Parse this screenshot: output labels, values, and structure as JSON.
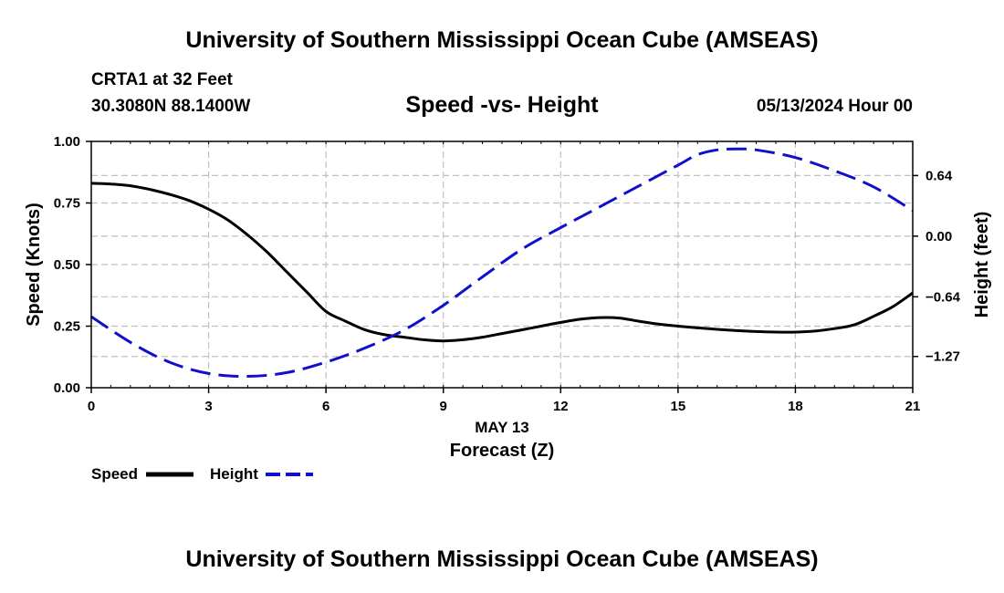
{
  "header": {
    "title": "University of Southern Mississippi Ocean Cube (AMSEAS)",
    "station": "CRTA1 at 32 Feet",
    "coords": "30.3080N  88.1400W",
    "subtitle": "Speed -vs- Height",
    "forecast": "05/13/2024 Hour 00"
  },
  "footer": {
    "title": "University of Southern Mississippi Ocean Cube (AMSEAS)"
  },
  "chart_data": {
    "type": "line",
    "title": "Speed -vs- Height",
    "xlabel": "Forecast (Z)",
    "xsublabel": "MAY 13",
    "xlim": [
      0,
      21
    ],
    "xticks": [
      0,
      3,
      6,
      9,
      12,
      15,
      18,
      21
    ],
    "ylabel": "Speed (Knots)",
    "ylim": [
      0,
      1
    ],
    "yticks": [
      0,
      0.25,
      0.5,
      0.75,
      1.0
    ],
    "ytick_labels": [
      "0.00",
      "0.25",
      "0.50",
      "0.75",
      "1.00"
    ],
    "y2label": "Height (feet)",
    "y2lim": [
      -1.6,
      1.0
    ],
    "y2ticks": [
      -1.27,
      -0.64,
      0.0,
      0.64
    ],
    "y2tick_labels": [
      "−1.27",
      "−0.64",
      "0.00",
      "0.64"
    ],
    "grid": true,
    "series": [
      {
        "name": "Speed",
        "axis": "left",
        "color": "#000000",
        "style": "solid",
        "x": [
          0,
          0.5,
          1,
          1.5,
          2,
          2.5,
          3,
          3.5,
          4,
          4.5,
          5,
          5.5,
          6,
          6.5,
          7,
          7.5,
          8,
          8.5,
          9,
          9.5,
          10,
          10.5,
          11,
          11.5,
          12,
          12.5,
          13,
          13.5,
          14,
          14.5,
          15,
          15.5,
          16,
          16.5,
          17,
          17.5,
          18,
          18.5,
          19,
          19.5,
          20,
          20.5,
          21
        ],
        "values": [
          0.83,
          0.827,
          0.82,
          0.805,
          0.785,
          0.76,
          0.725,
          0.68,
          0.62,
          0.55,
          0.47,
          0.39,
          0.31,
          0.27,
          0.235,
          0.215,
          0.205,
          0.195,
          0.19,
          0.195,
          0.205,
          0.22,
          0.235,
          0.25,
          0.265,
          0.278,
          0.285,
          0.283,
          0.27,
          0.258,
          0.25,
          0.243,
          0.237,
          0.232,
          0.228,
          0.226,
          0.226,
          0.23,
          0.24,
          0.255,
          0.29,
          0.33,
          0.385
        ],
        "x_override": true
      },
      {
        "name": "Height",
        "axis": "right",
        "color": "#1010cc",
        "style": "dashed",
        "x": [
          0,
          1,
          2,
          3,
          4,
          5,
          6,
          7,
          8,
          9,
          10,
          11,
          12,
          13,
          14,
          15,
          15.5,
          16,
          16.5,
          17,
          18,
          19,
          20,
          21
        ],
        "values": [
          -0.85,
          -1.12,
          -1.33,
          -1.45,
          -1.48,
          -1.44,
          -1.33,
          -1.18,
          -0.99,
          -0.73,
          -0.43,
          -0.14,
          0.09,
          0.31,
          0.53,
          0.75,
          0.86,
          0.91,
          0.92,
          0.91,
          0.83,
          0.69,
          0.52,
          0.27
        ]
      }
    ],
    "legend": {
      "position": "bottom-left",
      "entries": [
        {
          "label": "Speed",
          "color": "#000000",
          "style": "solid"
        },
        {
          "label": "Height",
          "color": "#1010cc",
          "style": "dashed"
        }
      ]
    }
  }
}
